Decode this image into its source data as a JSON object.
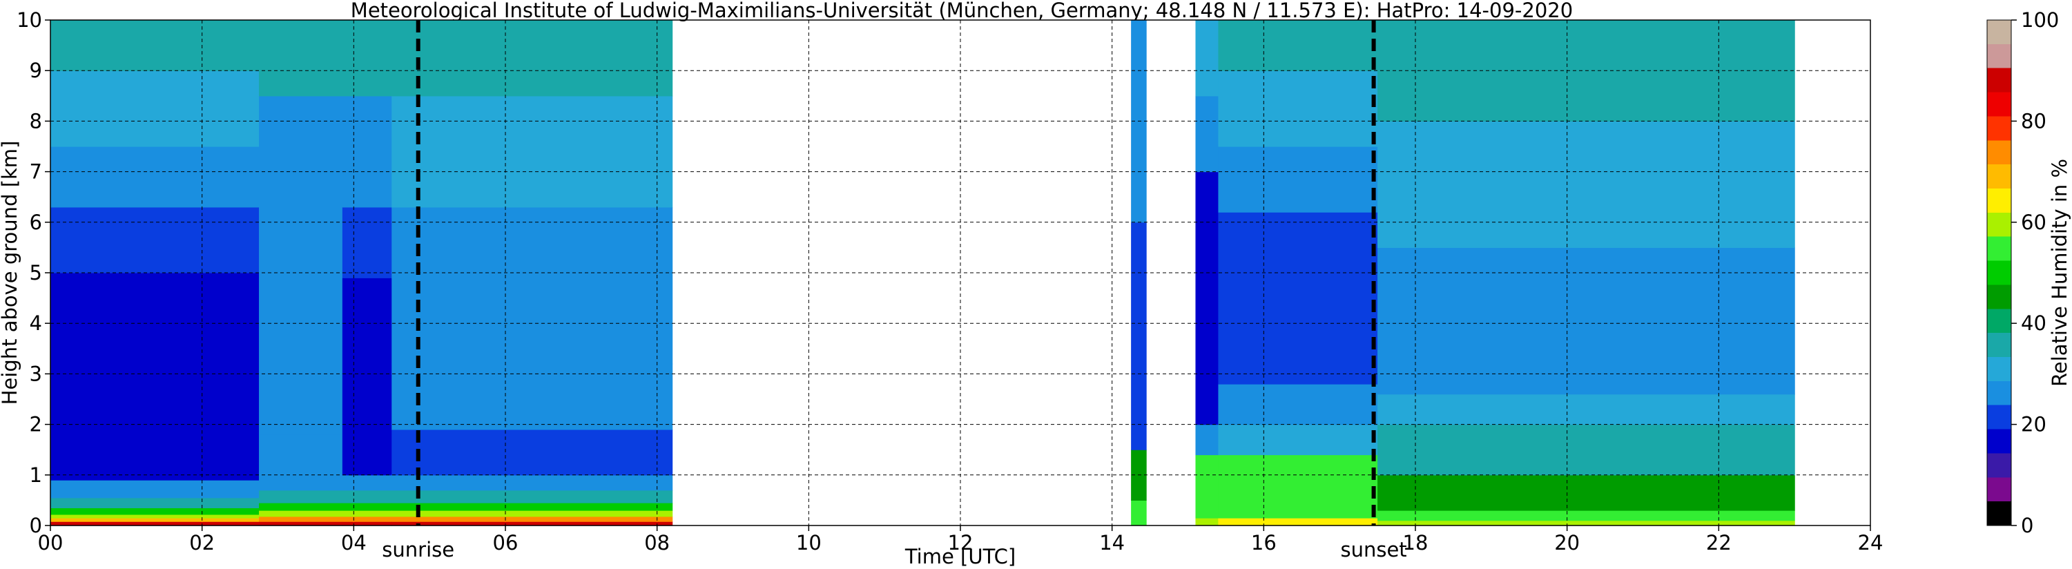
{
  "chart_data": {
    "type": "heatmap",
    "title": "Meteorological Institute of Ludwig-Maximilians-Universität (München, Germany; 48.148 N / 11.573 E):    HatPro: 14-09-2020",
    "xlabel": "Time [UTC]",
    "ylabel": "Height above ground [km]",
    "xlim": [
      0,
      24
    ],
    "ylim": [
      0,
      10
    ],
    "x_ticks": [
      0,
      2,
      4,
      6,
      8,
      10,
      12,
      14,
      16,
      18,
      20,
      22,
      24
    ],
    "x_tick_labels": [
      "00",
      "02",
      "04",
      "06",
      "08",
      "10",
      "12",
      "14",
      "16",
      "18",
      "20",
      "22",
      "24"
    ],
    "y_ticks": [
      0,
      1,
      2,
      3,
      4,
      5,
      6,
      7,
      8,
      9,
      10
    ],
    "y_tick_labels": [
      "0",
      "1",
      "2",
      "3",
      "4",
      "5",
      "6",
      "7",
      "8",
      "9",
      "10"
    ],
    "grid": true,
    "colorbar": {
      "label": "Relative Humidity in %",
      "range": [
        0,
        100
      ],
      "ticks": [
        0,
        20,
        40,
        60,
        80,
        100
      ],
      "tick_labels": [
        "0",
        "20",
        "40",
        "60",
        "80",
        "100"
      ],
      "colors": [
        "#000000",
        "#7b0a8e",
        "#3a1aa8",
        "#0000cc",
        "#0a3ee0",
        "#1a8fe0",
        "#25a8d8",
        "#1aa8a8",
        "#00a866",
        "#009c00",
        "#00cc00",
        "#33ee33",
        "#aaf000",
        "#ffee00",
        "#ffbb00",
        "#ff8c00",
        "#ff3300",
        "#ee0000",
        "#cc0000",
        "#cc9999",
        "#c8b4a0"
      ]
    },
    "events": [
      {
        "label": "sunrise",
        "time": 4.85
      },
      {
        "label": "sunset",
        "time": 17.45
      }
    ],
    "data_segments": [
      {
        "start": 0.0,
        "end": 8.2
      },
      {
        "start": 14.25,
        "end": 14.45
      },
      {
        "start": 15.1,
        "end": 23.0
      }
    ],
    "profiles": [
      {
        "from": 0.0,
        "to": 2.75,
        "layers": [
          {
            "bottom": 0.0,
            "top": 0.08,
            "rh": 88
          },
          {
            "bottom": 0.08,
            "top": 0.15,
            "rh": 70
          },
          {
            "bottom": 0.15,
            "top": 0.22,
            "rh": 60
          },
          {
            "bottom": 0.22,
            "top": 0.35,
            "rh": 48
          },
          {
            "bottom": 0.35,
            "top": 0.55,
            "rh": 36
          },
          {
            "bottom": 0.55,
            "top": 0.9,
            "rh": 26
          },
          {
            "bottom": 0.9,
            "top": 1.5,
            "rh": 18
          },
          {
            "bottom": 1.5,
            "top": 2.0,
            "rh": 15
          },
          {
            "bottom": 2.0,
            "top": 3.0,
            "rh": 17
          },
          {
            "bottom": 3.0,
            "top": 5.0,
            "rh": 19
          },
          {
            "bottom": 5.0,
            "top": 6.3,
            "rh": 21
          },
          {
            "bottom": 6.3,
            "top": 7.5,
            "rh": 26
          },
          {
            "bottom": 7.5,
            "top": 9.0,
            "rh": 30
          },
          {
            "bottom": 9.0,
            "top": 10.0,
            "rh": 34
          }
        ]
      },
      {
        "from": 2.75,
        "to": 3.85,
        "layers": [
          {
            "bottom": 0.0,
            "top": 0.08,
            "rh": 88
          },
          {
            "bottom": 0.08,
            "top": 0.18,
            "rh": 72
          },
          {
            "bottom": 0.18,
            "top": 0.3,
            "rh": 60
          },
          {
            "bottom": 0.3,
            "top": 0.45,
            "rh": 48
          },
          {
            "bottom": 0.45,
            "top": 0.7,
            "rh": 36
          },
          {
            "bottom": 0.7,
            "top": 1.0,
            "rh": 26
          },
          {
            "bottom": 1.0,
            "top": 1.8,
            "rh": 24
          },
          {
            "bottom": 1.8,
            "top": 3.0,
            "rh": 26
          },
          {
            "bottom": 3.0,
            "top": 6.3,
            "rh": 24
          },
          {
            "bottom": 6.3,
            "top": 8.5,
            "rh": 28
          },
          {
            "bottom": 8.5,
            "top": 10.0,
            "rh": 36
          }
        ]
      },
      {
        "from": 3.85,
        "to": 4.5,
        "layers": [
          {
            "bottom": 0.0,
            "top": 0.08,
            "rh": 88
          },
          {
            "bottom": 0.08,
            "top": 0.18,
            "rh": 72
          },
          {
            "bottom": 0.18,
            "top": 0.3,
            "rh": 60
          },
          {
            "bottom": 0.3,
            "top": 0.45,
            "rh": 48
          },
          {
            "bottom": 0.45,
            "top": 0.7,
            "rh": 36
          },
          {
            "bottom": 0.7,
            "top": 1.0,
            "rh": 26
          },
          {
            "bottom": 1.0,
            "top": 3.0,
            "rh": 15
          },
          {
            "bottom": 3.0,
            "top": 4.9,
            "rh": 17
          },
          {
            "bottom": 4.9,
            "top": 6.3,
            "rh": 22
          },
          {
            "bottom": 6.3,
            "top": 8.5,
            "rh": 28
          },
          {
            "bottom": 8.5,
            "top": 10.0,
            "rh": 36
          }
        ]
      },
      {
        "from": 4.5,
        "to": 8.2,
        "layers": [
          {
            "bottom": 0.0,
            "top": 0.08,
            "rh": 88
          },
          {
            "bottom": 0.08,
            "top": 0.18,
            "rh": 72
          },
          {
            "bottom": 0.18,
            "top": 0.3,
            "rh": 60
          },
          {
            "bottom": 0.3,
            "top": 0.45,
            "rh": 48
          },
          {
            "bottom": 0.45,
            "top": 0.7,
            "rh": 36
          },
          {
            "bottom": 0.7,
            "top": 1.0,
            "rh": 26
          },
          {
            "bottom": 1.0,
            "top": 1.9,
            "rh": 20
          },
          {
            "bottom": 1.9,
            "top": 3.2,
            "rh": 25
          },
          {
            "bottom": 3.2,
            "top": 6.3,
            "rh": 26
          },
          {
            "bottom": 6.3,
            "top": 8.5,
            "rh": 30
          },
          {
            "bottom": 8.5,
            "top": 10.0,
            "rh": 36
          }
        ]
      },
      {
        "from": 14.25,
        "to": 14.45,
        "layers": [
          {
            "bottom": 0.0,
            "top": 0.5,
            "rh": 55
          },
          {
            "bottom": 0.5,
            "top": 1.5,
            "rh": 45
          },
          {
            "bottom": 1.5,
            "top": 6.0,
            "rh": 20
          },
          {
            "bottom": 6.0,
            "top": 10.0,
            "rh": 27
          }
        ]
      },
      {
        "from": 15.1,
        "to": 15.4,
        "layers": [
          {
            "bottom": 0.0,
            "top": 0.15,
            "rh": 60
          },
          {
            "bottom": 0.15,
            "top": 1.4,
            "rh": 55
          },
          {
            "bottom": 1.4,
            "top": 2.0,
            "rh": 28
          },
          {
            "bottom": 2.0,
            "top": 7.0,
            "rh": 19
          },
          {
            "bottom": 7.0,
            "top": 8.5,
            "rh": 26
          },
          {
            "bottom": 8.5,
            "top": 10.0,
            "rh": 30
          }
        ]
      },
      {
        "from": 15.4,
        "to": 17.5,
        "layers": [
          {
            "bottom": 0.0,
            "top": 0.15,
            "rh": 62
          },
          {
            "bottom": 0.15,
            "top": 1.4,
            "rh": 55
          },
          {
            "bottom": 1.4,
            "top": 2.0,
            "rh": 30
          },
          {
            "bottom": 2.0,
            "top": 2.8,
            "rh": 26
          },
          {
            "bottom": 2.8,
            "top": 5.0,
            "rh": 20
          },
          {
            "bottom": 5.0,
            "top": 6.2,
            "rh": 22
          },
          {
            "bottom": 6.2,
            "top": 7.5,
            "rh": 26
          },
          {
            "bottom": 7.5,
            "top": 9.0,
            "rh": 30
          },
          {
            "bottom": 9.0,
            "top": 10.0,
            "rh": 36
          }
        ]
      },
      {
        "from": 17.5,
        "to": 23.0,
        "layers": [
          {
            "bottom": 0.0,
            "top": 0.1,
            "rh": 60
          },
          {
            "bottom": 0.1,
            "top": 0.3,
            "rh": 53
          },
          {
            "bottom": 0.3,
            "top": 1.0,
            "rh": 46
          },
          {
            "bottom": 1.0,
            "top": 2.0,
            "rh": 38
          },
          {
            "bottom": 2.0,
            "top": 2.6,
            "rh": 30
          },
          {
            "bottom": 2.6,
            "top": 5.5,
            "rh": 27
          },
          {
            "bottom": 5.5,
            "top": 8.0,
            "rh": 29
          },
          {
            "bottom": 8.0,
            "top": 10.0,
            "rh": 34
          }
        ]
      }
    ]
  }
}
